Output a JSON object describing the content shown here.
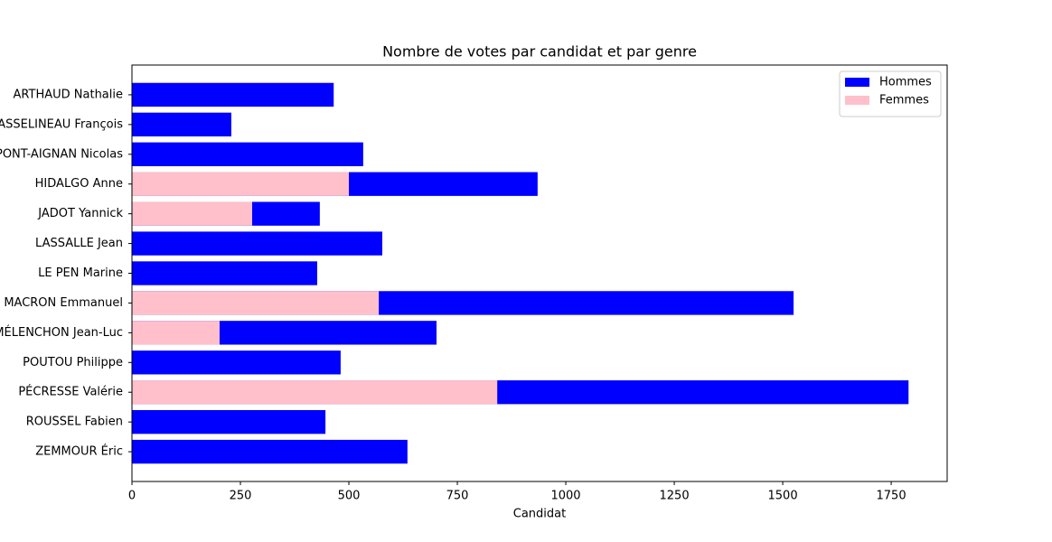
{
  "chart_data": {
    "type": "barh",
    "title": "Nombre de votes par candidat et par genre",
    "xlabel": "Candidat",
    "categories": [
      "ARTHAUD Nathalie",
      "ASSELINEAU François",
      "DUPONT-AIGNAN Nicolas",
      "HIDALGO Anne",
      "JADOT Yannick",
      "LASSALLE Jean",
      "LE PEN Marine",
      "MACRON Emmanuel",
      "MÉLENCHON Jean-Luc",
      "POUTOU Philippe",
      "PÉCRESSE Valérie",
      "ROUSSEL Fabien",
      "ZEMMOUR Éric"
    ],
    "series": [
      {
        "name": "Hommes",
        "color": "#0000ff",
        "values": [
          465,
          229,
          533,
          935,
          433,
          577,
          427,
          1525,
          702,
          481,
          1790,
          446,
          635
        ]
      },
      {
        "name": "Femmes",
        "color": "#ffc0cb",
        "values": [
          0,
          0,
          0,
          500,
          277,
          0,
          0,
          569,
          202,
          0,
          842,
          0,
          0
        ]
      }
    ],
    "xlim": [
      0,
      1879
    ],
    "xticks": [
      0,
      250,
      500,
      750,
      1000,
      1250,
      1500,
      1750
    ],
    "legend": "upper right"
  }
}
